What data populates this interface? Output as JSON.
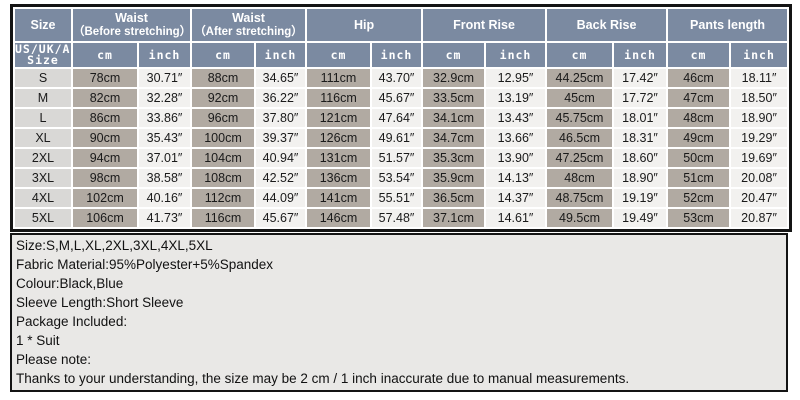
{
  "colors": {
    "header_bg": "#7b8aa1",
    "size_col_bg": "#d9d8d6",
    "cm_col_bg": "#b1aaa2",
    "inch_col_bg": "#f2f1ef",
    "notes_bg": "#e9e8e6",
    "border": "#141414"
  },
  "header": {
    "size_label": "Size",
    "size_sub_line1": "US/UK/AU",
    "size_sub_line2": "Size",
    "groups": [
      {
        "title": "Waist",
        "subtitle": "（Before stretching）"
      },
      {
        "title": "Waist",
        "subtitle": "（After stretching）"
      },
      {
        "title": "Hip"
      },
      {
        "title": "Front Rise"
      },
      {
        "title": "Back Rise"
      },
      {
        "title": "Pants length"
      }
    ],
    "unit_cm": "cm",
    "unit_inch": "inch"
  },
  "rows": [
    {
      "size": "S",
      "values": [
        "78cm",
        "30.71″",
        "88cm",
        "34.65″",
        "111cm",
        "43.70″",
        "32.9cm",
        "12.95″",
        "44.25cm",
        "17.42″",
        "46cm",
        "18.11″"
      ]
    },
    {
      "size": "M",
      "values": [
        "82cm",
        "32.28″",
        "92cm",
        "36.22″",
        "116cm",
        "45.67″",
        "33.5cm",
        "13.19″",
        "45cm",
        "17.72″",
        "47cm",
        "18.50″"
      ]
    },
    {
      "size": "L",
      "values": [
        "86cm",
        "33.86″",
        "96cm",
        "37.80″",
        "121cm",
        "47.64″",
        "34.1cm",
        "13.43″",
        "45.75cm",
        "18.01″",
        "48cm",
        "18.90″"
      ]
    },
    {
      "size": "XL",
      "values": [
        "90cm",
        "35.43″",
        "100cm",
        "39.37″",
        "126cm",
        "49.61″",
        "34.7cm",
        "13.66″",
        "46.5cm",
        "18.31″",
        "49cm",
        "19.29″"
      ]
    },
    {
      "size": "2XL",
      "values": [
        "94cm",
        "37.01″",
        "104cm",
        "40.94″",
        "131cm",
        "51.57″",
        "35.3cm",
        "13.90″",
        "47.25cm",
        "18.60″",
        "50cm",
        "19.69″"
      ]
    },
    {
      "size": "3XL",
      "values": [
        "98cm",
        "38.58″",
        "108cm",
        "42.52″",
        "136cm",
        "53.54″",
        "35.9cm",
        "14.13″",
        "48cm",
        "18.90″",
        "51cm",
        "20.08″"
      ]
    },
    {
      "size": "4XL",
      "values": [
        "102cm",
        "40.16″",
        "112cm",
        "44.09″",
        "141cm",
        "55.51″",
        "36.5cm",
        "14.37″",
        "48.75cm",
        "19.19″",
        "52cm",
        "20.47″"
      ]
    },
    {
      "size": "5XL",
      "values": [
        "106cm",
        "41.73″",
        "116cm",
        "45.67″",
        "146cm",
        "57.48″",
        "37.1cm",
        "14.61″",
        "49.5cm",
        "19.49″",
        "53cm",
        "20.87″"
      ]
    }
  ],
  "notes": [
    "Size:S,M,L,XL,2XL,3XL,4XL,5XL",
    "Fabric Material:95%Polyester+5%Spandex",
    "Colour:Black,Blue",
    "Sleeve Length:Short Sleeve",
    "Package Included:",
    "1 * Suit",
    "Please note:",
    "Thanks to your understanding, the size may be 2 cm / 1 inch inaccurate due to manual measurements."
  ]
}
